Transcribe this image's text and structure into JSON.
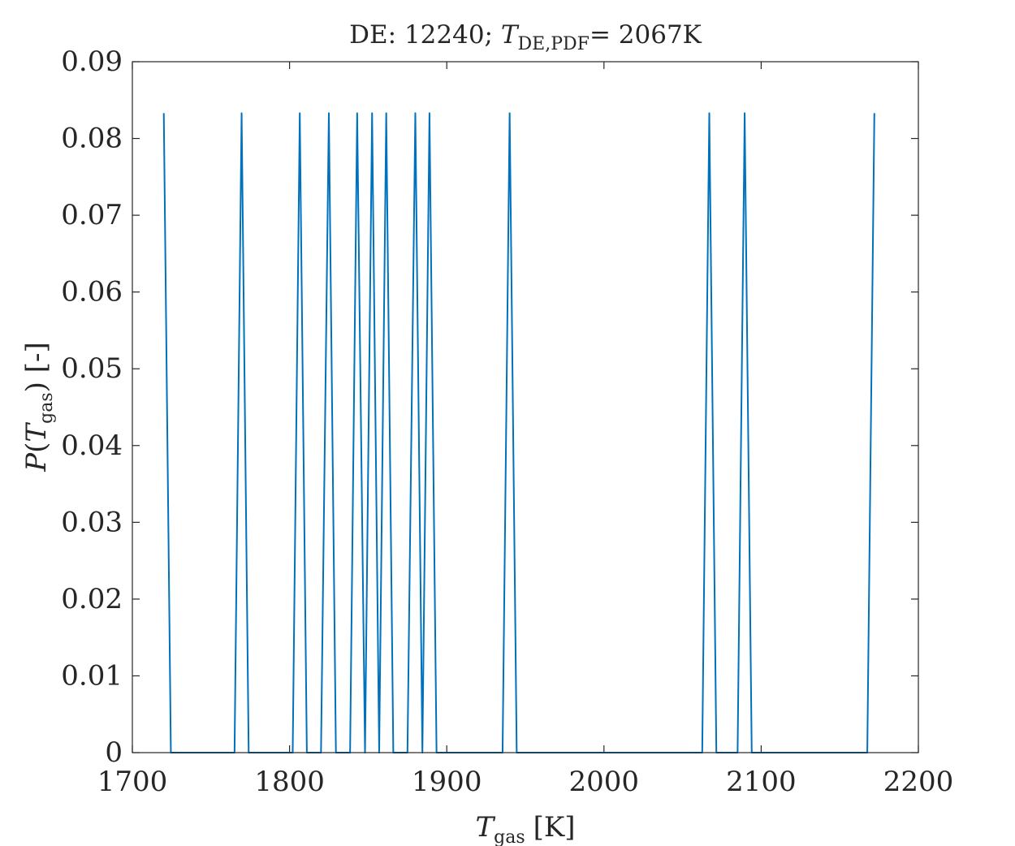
{
  "chart_data": {
    "type": "line",
    "title": "DE: 12240; T_DE,PDF= 2067K",
    "title_parts": {
      "prefix": "DE: 12240; ",
      "symbol": "T",
      "subscript": "DE,PDF",
      "suffix": "= 2067K"
    },
    "xlabel": "T_gas [K]",
    "xlabel_parts": {
      "symbol": "T",
      "subscript": "gas",
      "suffix": "[K]"
    },
    "ylabel": "P(T_gas) [-]",
    "ylabel_parts": {
      "prefix": "P(",
      "symbol": "T",
      "subscript": "gas",
      "suffix": ") [-]"
    },
    "xlim": [
      1700,
      2200
    ],
    "ylim": [
      0,
      0.09
    ],
    "x_ticks": [
      "1700",
      "1800",
      "1900",
      "2000",
      "2100",
      "2200"
    ],
    "y_ticks": [
      "0",
      "0.01",
      "0.02",
      "0.03",
      "0.04",
      "0.05",
      "0.06",
      "0.07",
      "0.08",
      "0.09"
    ],
    "grid": false,
    "line_color": "#0072BD",
    "series": [
      {
        "x": [
          1720,
          1724.5,
          1765,
          1769.5,
          1774,
          1802,
          1806.5,
          1811,
          1820,
          1825,
          1829.5,
          1838.5,
          1843,
          1848,
          1852.5,
          1857,
          1861.5,
          1866,
          1875,
          1880,
          1884.5,
          1889,
          1893.5,
          1935.5,
          1940,
          1944.5,
          2062.5,
          2067,
          2071.5,
          2085,
          2089.5,
          2094,
          2167.5,
          2172
        ],
        "y": [
          0.0833,
          0,
          0,
          0.0833,
          0,
          0,
          0.0833,
          0,
          0,
          0.0833,
          0,
          0,
          0.0833,
          0,
          0.0833,
          0,
          0.0833,
          0,
          0,
          0.0833,
          0,
          0.0833,
          0,
          0,
          0.0833,
          0,
          0,
          0.0833,
          0,
          0,
          0.0833,
          0,
          0,
          0.0833
        ]
      }
    ]
  }
}
